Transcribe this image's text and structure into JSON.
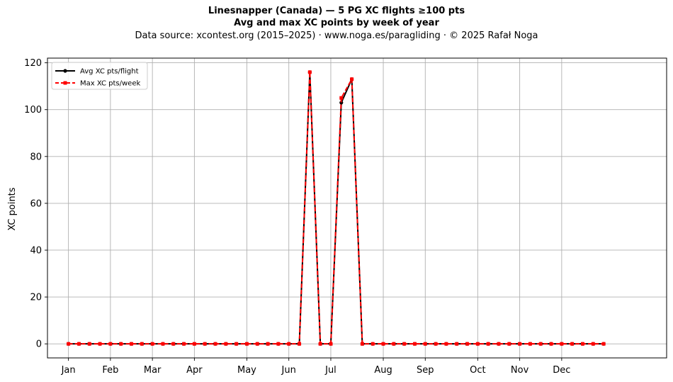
{
  "title": "Linesnapper (Canada)  —  5 PG XC flights ≥100 pts",
  "subtitle": "Avg and max XC points by week of year",
  "source_note": "Data source: xcontest.org (2015–2025)  ·  www.noga.es/paragliding  ·  © 2025 Rafał Noga",
  "chart_data": {
    "type": "line",
    "title": "Linesnapper (Canada)  —  5 PG XC flights ≥100 pts",
    "subtitle": "Avg and max XC points by week of year",
    "xlabel": "",
    "ylabel": "XC points",
    "xlim": [
      -2,
      57
    ],
    "ylim": [
      -6,
      122
    ],
    "x_ticks": [
      {
        "label": "Jan",
        "x": 0
      },
      {
        "label": "Feb",
        "x": 4
      },
      {
        "label": "Mar",
        "x": 8
      },
      {
        "label": "Apr",
        "x": 12
      },
      {
        "label": "May",
        "x": 17
      },
      {
        "label": "Jun",
        "x": 21
      },
      {
        "label": "Jul",
        "x": 25
      },
      {
        "label": "Aug",
        "x": 30
      },
      {
        "label": "Sep",
        "x": 34
      },
      {
        "label": "Oct",
        "x": 39
      },
      {
        "label": "Nov",
        "x": 43
      },
      {
        "label": "Dec",
        "x": 47
      }
    ],
    "y_ticks": [
      0,
      20,
      40,
      60,
      80,
      100,
      120
    ],
    "grid": true,
    "legend_position": "top-left",
    "x": [
      0,
      1,
      2,
      3,
      4,
      5,
      6,
      7,
      8,
      9,
      10,
      11,
      12,
      13,
      14,
      15,
      16,
      17,
      18,
      19,
      20,
      21,
      22,
      23,
      24,
      25,
      26,
      27,
      28,
      29,
      30,
      31,
      32,
      33,
      34,
      35,
      36,
      37,
      38,
      39,
      40,
      41,
      42,
      43,
      44,
      45,
      46,
      47,
      48,
      49,
      50,
      51
    ],
    "series": [
      {
        "name": "Avg XC pts/flight",
        "color": "#000000",
        "line_style": "solid",
        "marker": "circle",
        "values": [
          0,
          0,
          0,
          0,
          0,
          0,
          0,
          0,
          0,
          0,
          0,
          0,
          0,
          0,
          0,
          0,
          0,
          0,
          0,
          0,
          0,
          0,
          0,
          116,
          0,
          0,
          103,
          113,
          0,
          0,
          0,
          0,
          0,
          0,
          0,
          0,
          0,
          0,
          0,
          0,
          0,
          0,
          0,
          0,
          0,
          0,
          0,
          0,
          0,
          0,
          0,
          0
        ]
      },
      {
        "name": "Max XC pts/week",
        "color": "#ff0000",
        "line_style": "dashed",
        "marker": "square",
        "values": [
          0,
          0,
          0,
          0,
          0,
          0,
          0,
          0,
          0,
          0,
          0,
          0,
          0,
          0,
          0,
          0,
          0,
          0,
          0,
          0,
          0,
          0,
          0,
          116,
          0,
          0,
          105,
          113,
          0,
          0,
          0,
          0,
          0,
          0,
          0,
          0,
          0,
          0,
          0,
          0,
          0,
          0,
          0,
          0,
          0,
          0,
          0,
          0,
          0,
          0,
          0,
          0
        ]
      }
    ]
  }
}
